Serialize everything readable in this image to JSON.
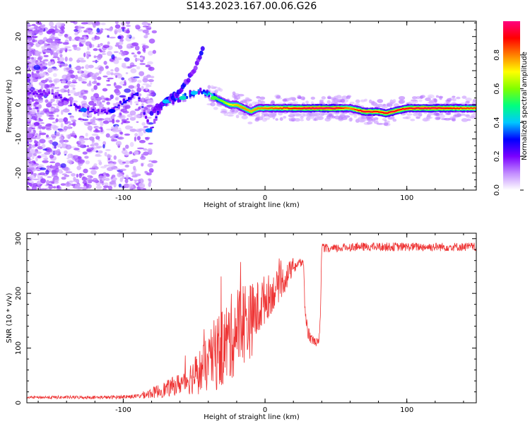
{
  "figure": {
    "title": "S143.2023.167.00.06.G26"
  },
  "chart_data": [
    {
      "type": "heatmap",
      "title": "S143.2023.167.00.06.G26",
      "xlabel": "Height of straight line (km)",
      "ylabel": "Frequency (Hz)",
      "xlim": [
        -168,
        149
      ],
      "ylim": [
        -25,
        24.5
      ],
      "xticks": [
        -100,
        0,
        100
      ],
      "yticks": [
        -20,
        -10,
        0,
        10,
        20
      ],
      "colorbar": {
        "label": "Normalized spectral amplitude",
        "range": [
          0,
          1
        ],
        "ticks": [
          0.0,
          0.2,
          0.4,
          0.6,
          0.8
        ],
        "colormap": [
          "#ffffff",
          "#c28cff",
          "#7a00ff",
          "#0000ff",
          "#00c8ff",
          "#00ff7f",
          "#7fff00",
          "#ffff00",
          "#ff8000",
          "#ff0000",
          "#ff0080"
        ]
      },
      "ridge": {
        "x": [
          -168,
          -150,
          -130,
          -110,
          -100,
          -90,
          -80,
          -75,
          -70,
          -60,
          -50,
          -45,
          -40,
          -35,
          -30,
          -25,
          -20,
          -15,
          -10,
          -5,
          0,
          10,
          20,
          30,
          40,
          50,
          60,
          70,
          80,
          85,
          90,
          95,
          100,
          110,
          120,
          130,
          149
        ],
        "frequency": [
          3.5,
          3.5,
          -1.5,
          -2.0,
          1.0,
          3.0,
          -7.5,
          -1.5,
          0.5,
          2.0,
          3.5,
          4.0,
          3.0,
          2.0,
          1.0,
          0.0,
          0.0,
          -1.0,
          -2.0,
          -1.0,
          -1.0,
          -1.0,
          -1.0,
          -1.0,
          -1.0,
          -1.0,
          -1.0,
          -2.0,
          -2.0,
          -2.5,
          -2.0,
          -1.5,
          -1.0,
          -1.0,
          -1.0,
          -1.0,
          -1.0
        ],
        "amplitude": [
          0.22,
          0.22,
          0.25,
          0.22,
          0.3,
          0.3,
          0.22,
          0.3,
          0.35,
          0.4,
          0.4,
          0.35,
          0.45,
          0.55,
          0.62,
          0.7,
          0.75,
          0.8,
          0.75,
          0.8,
          0.82,
          0.86,
          0.9,
          0.95,
          0.97,
          0.95,
          0.8,
          0.95,
          0.9,
          0.92,
          0.95,
          0.9,
          0.92,
          0.95,
          0.95,
          0.9,
          0.85
        ]
      },
      "spur": {
        "x": [
          -80,
          -60,
          -50,
          -44
        ],
        "frequency": [
          -2,
          4,
          10,
          16
        ]
      }
    },
    {
      "type": "line",
      "xlabel": "Height of straight line (km)",
      "ylabel": "SNR (10 * v/v)",
      "xlim": [
        -168,
        149
      ],
      "ylim": [
        0,
        310
      ],
      "xticks": [
        -100,
        0,
        100
      ],
      "yticks": [
        0,
        100,
        200,
        300
      ],
      "color": "#ee3333",
      "series": [
        {
          "name": "SNR",
          "x": [
            -168,
            -150,
            -130,
            -110,
            -90,
            -80,
            -70,
            -60,
            -50,
            -45,
            -40,
            -35,
            -30,
            -25,
            -20,
            -15,
            -10,
            -5,
            0,
            5,
            10,
            15,
            20,
            25,
            27,
            28,
            30,
            33,
            37,
            38,
            39,
            40,
            45,
            50,
            60,
            70,
            80,
            90,
            100,
            110,
            120,
            130,
            140,
            149
          ],
          "y": [
            10,
            10,
            10,
            10,
            12,
            18,
            25,
            35,
            50,
            60,
            70,
            90,
            100,
            115,
            135,
            150,
            150,
            170,
            190,
            200,
            215,
            230,
            250,
            255,
            260,
            180,
            130,
            115,
            110,
            112,
            150,
            285,
            280,
            282,
            285,
            285,
            285,
            285,
            285,
            285,
            285,
            285,
            285,
            285
          ],
          "noise": [
            2,
            3,
            3,
            3,
            4,
            10,
            15,
            20,
            35,
            45,
            50,
            70,
            75,
            80,
            80,
            80,
            70,
            55,
            45,
            35,
            30,
            25,
            15,
            10,
            8,
            20,
            15,
            8,
            8,
            5,
            10,
            8,
            8,
            8,
            8,
            8,
            8,
            8,
            8,
            8,
            8,
            8,
            8,
            8
          ]
        }
      ]
    }
  ]
}
